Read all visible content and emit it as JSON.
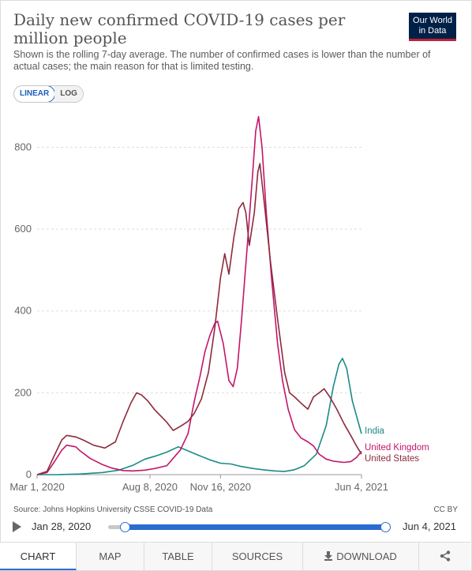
{
  "header": {
    "title": "Daily new confirmed COVID-19 cases per million people",
    "subtitle": "Shown is the rolling 7-day average. The number of confirmed cases is lower than the number of actual cases; the main reason for that is limited testing.",
    "logo_line1": "Our World",
    "logo_line2": "in Data"
  },
  "scale_toggle": {
    "linear": "LINEAR",
    "log": "LOG",
    "selected": "LINEAR"
  },
  "colors": {
    "india": "#1a8b86",
    "uk": "#c4156a",
    "us": "#8e2a3c",
    "grid": "#dddddd",
    "accent": "#2a6cd1"
  },
  "chart_data": {
    "type": "line",
    "title": "Daily new confirmed COVID-19 cases per million people",
    "ylim": [
      0,
      880
    ],
    "y_ticks": [
      0,
      200,
      400,
      600,
      800
    ],
    "x_tick_labels": [
      "Mar 1, 2020",
      "Aug 8, 2020",
      "Nov 16, 2020",
      "Jun 4, 2021"
    ],
    "x_tick_dates": [
      "2020-03-01",
      "2020-08-08",
      "2020-11-16",
      "2021-06-04"
    ],
    "x_range": [
      "2020-03-01",
      "2021-06-04"
    ],
    "grid": true,
    "legend": "right-end labels",
    "series": [
      {
        "name": "India",
        "color_key": "india",
        "points": [
          [
            "2020-03-01",
            0
          ],
          [
            "2020-04-01",
            0.2
          ],
          [
            "2020-05-01",
            1.5
          ],
          [
            "2020-06-01",
            5
          ],
          [
            "2020-06-25",
            11
          ],
          [
            "2020-07-15",
            23
          ],
          [
            "2020-08-01",
            38
          ],
          [
            "2020-08-15",
            45
          ],
          [
            "2020-09-01",
            55
          ],
          [
            "2020-09-17",
            68
          ],
          [
            "2020-10-01",
            58
          ],
          [
            "2020-10-15",
            48
          ],
          [
            "2020-11-01",
            36
          ],
          [
            "2020-11-16",
            28
          ],
          [
            "2020-12-01",
            26
          ],
          [
            "2020-12-15",
            20
          ],
          [
            "2021-01-01",
            15
          ],
          [
            "2021-01-15",
            12
          ],
          [
            "2021-02-01",
            9
          ],
          [
            "2021-02-15",
            8
          ],
          [
            "2021-03-01",
            12
          ],
          [
            "2021-03-15",
            22
          ],
          [
            "2021-04-01",
            50
          ],
          [
            "2021-04-15",
            120
          ],
          [
            "2021-04-25",
            215
          ],
          [
            "2021-05-03",
            270
          ],
          [
            "2021-05-08",
            284
          ],
          [
            "2021-05-14",
            260
          ],
          [
            "2021-05-22",
            180
          ],
          [
            "2021-06-04",
            100
          ]
        ]
      },
      {
        "name": "United Kingdom",
        "color_key": "uk",
        "points": [
          [
            "2020-03-01",
            0
          ],
          [
            "2020-03-15",
            5
          ],
          [
            "2020-03-25",
            30
          ],
          [
            "2020-04-05",
            60
          ],
          [
            "2020-04-12",
            72
          ],
          [
            "2020-04-25",
            68
          ],
          [
            "2020-05-01",
            58
          ],
          [
            "2020-05-15",
            40
          ],
          [
            "2020-06-01",
            25
          ],
          [
            "2020-06-15",
            16
          ],
          [
            "2020-07-01",
            10
          ],
          [
            "2020-07-15",
            9
          ],
          [
            "2020-08-01",
            11
          ],
          [
            "2020-08-15",
            15
          ],
          [
            "2020-09-01",
            22
          ],
          [
            "2020-09-10",
            40
          ],
          [
            "2020-09-20",
            60
          ],
          [
            "2020-10-01",
            100
          ],
          [
            "2020-10-10",
            180
          ],
          [
            "2020-10-18",
            240
          ],
          [
            "2020-10-25",
            300
          ],
          [
            "2020-11-01",
            340
          ],
          [
            "2020-11-08",
            370
          ],
          [
            "2020-11-12",
            375
          ],
          [
            "2020-11-20",
            320
          ],
          [
            "2020-11-28",
            230
          ],
          [
            "2020-12-04",
            215
          ],
          [
            "2020-12-10",
            260
          ],
          [
            "2020-12-16",
            380
          ],
          [
            "2020-12-24",
            560
          ],
          [
            "2020-12-31",
            720
          ],
          [
            "2021-01-05",
            840
          ],
          [
            "2021-01-09",
            875
          ],
          [
            "2021-01-14",
            800
          ],
          [
            "2021-01-20",
            640
          ],
          [
            "2021-01-28",
            470
          ],
          [
            "2021-02-05",
            320
          ],
          [
            "2021-02-12",
            230
          ],
          [
            "2021-02-20",
            160
          ],
          [
            "2021-03-01",
            110
          ],
          [
            "2021-03-10",
            90
          ],
          [
            "2021-03-20",
            80
          ],
          [
            "2021-03-28",
            70
          ],
          [
            "2021-04-05",
            50
          ],
          [
            "2021-04-15",
            38
          ],
          [
            "2021-04-25",
            33
          ],
          [
            "2021-05-10",
            30
          ],
          [
            "2021-05-20",
            32
          ],
          [
            "2021-05-28",
            42
          ],
          [
            "2021-06-04",
            57
          ]
        ]
      },
      {
        "name": "United States",
        "color_key": "us",
        "points": [
          [
            "2020-03-01",
            0
          ],
          [
            "2020-03-15",
            8
          ],
          [
            "2020-03-25",
            45
          ],
          [
            "2020-04-05",
            85
          ],
          [
            "2020-04-12",
            96
          ],
          [
            "2020-04-25",
            92
          ],
          [
            "2020-05-05",
            85
          ],
          [
            "2020-05-20",
            72
          ],
          [
            "2020-06-05",
            65
          ],
          [
            "2020-06-20",
            80
          ],
          [
            "2020-07-01",
            130
          ],
          [
            "2020-07-12",
            175
          ],
          [
            "2020-07-20",
            200
          ],
          [
            "2020-07-27",
            195
          ],
          [
            "2020-08-05",
            180
          ],
          [
            "2020-08-15",
            158
          ],
          [
            "2020-09-01",
            128
          ],
          [
            "2020-09-10",
            108
          ],
          [
            "2020-09-20",
            118
          ],
          [
            "2020-10-01",
            130
          ],
          [
            "2020-10-10",
            150
          ],
          [
            "2020-10-20",
            185
          ],
          [
            "2020-10-30",
            250
          ],
          [
            "2020-11-08",
            360
          ],
          [
            "2020-11-16",
            480
          ],
          [
            "2020-11-22",
            540
          ],
          [
            "2020-11-28",
            490
          ],
          [
            "2020-12-05",
            580
          ],
          [
            "2020-12-12",
            650
          ],
          [
            "2020-12-18",
            665
          ],
          [
            "2020-12-22",
            640
          ],
          [
            "2020-12-27",
            560
          ],
          [
            "2021-01-03",
            640
          ],
          [
            "2021-01-08",
            740
          ],
          [
            "2021-01-11",
            760
          ],
          [
            "2021-01-18",
            650
          ],
          [
            "2021-01-26",
            520
          ],
          [
            "2021-02-05",
            380
          ],
          [
            "2021-02-15",
            250
          ],
          [
            "2021-02-22",
            200
          ],
          [
            "2021-03-01",
            190
          ],
          [
            "2021-03-10",
            175
          ],
          [
            "2021-03-20",
            160
          ],
          [
            "2021-03-28",
            190
          ],
          [
            "2021-04-05",
            200
          ],
          [
            "2021-04-12",
            210
          ],
          [
            "2021-04-20",
            190
          ],
          [
            "2021-04-30",
            160
          ],
          [
            "2021-05-10",
            125
          ],
          [
            "2021-05-20",
            95
          ],
          [
            "2021-05-28",
            70
          ],
          [
            "2021-06-04",
            50
          ]
        ]
      }
    ]
  },
  "footer": {
    "source": "Source: Johns Hopkins University CSSE COVID-19 Data",
    "license": "CC BY",
    "start_date": "Jan 28, 2020",
    "end_date": "Jun 4, 2021",
    "slider_start": 0.06,
    "slider_end": 1.0
  },
  "tabs": [
    {
      "label": "CHART",
      "active": true
    },
    {
      "label": "MAP",
      "active": false
    },
    {
      "label": "TABLE",
      "active": false
    },
    {
      "label": "SOURCES",
      "active": false
    },
    {
      "label": "DOWNLOAD",
      "active": false
    },
    {
      "label": "share-icon",
      "active": false
    }
  ]
}
